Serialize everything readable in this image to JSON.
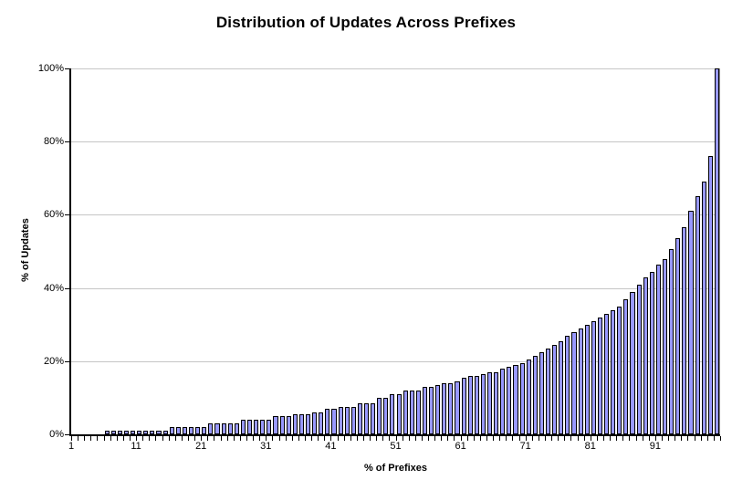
{
  "title": "Distribution of Updates Across Prefixes",
  "chart_data": {
    "type": "bar",
    "title": "Distribution of Updates Across Prefixes",
    "xlabel": "% of Prefixes",
    "ylabel": "% of Updates",
    "ylim": [
      0,
      100
    ],
    "grid": "horizontal",
    "legend_position": "none",
    "bar_color": "#9999ff",
    "bar_border_color": "#000000",
    "gridline_color": "#c6c6c6",
    "yticks": [
      0,
      20,
      40,
      60,
      80,
      100
    ],
    "ytick_labels": [
      "0%",
      "20%",
      "40%",
      "60%",
      "80%",
      "100%"
    ],
    "xtick_labels": [
      "1",
      "11",
      "21",
      "31",
      "41",
      "51",
      "61",
      "71",
      "81",
      "91"
    ],
    "xtick_every": 10,
    "x": [
      1,
      2,
      3,
      4,
      5,
      6,
      7,
      8,
      9,
      10,
      11,
      12,
      13,
      14,
      15,
      16,
      17,
      18,
      19,
      20,
      21,
      22,
      23,
      24,
      25,
      26,
      27,
      28,
      29,
      30,
      31,
      32,
      33,
      34,
      35,
      36,
      37,
      38,
      39,
      40,
      41,
      42,
      43,
      44,
      45,
      46,
      47,
      48,
      49,
      50,
      51,
      52,
      53,
      54,
      55,
      56,
      57,
      58,
      59,
      60,
      61,
      62,
      63,
      64,
      65,
      66,
      67,
      68,
      69,
      70,
      71,
      72,
      73,
      74,
      75,
      76,
      77,
      78,
      79,
      80,
      81,
      82,
      83,
      84,
      85,
      86,
      87,
      88,
      89,
      90,
      91,
      92,
      93,
      94,
      95,
      96,
      97,
      98,
      99,
      100
    ],
    "values": [
      0,
      0,
      0,
      0,
      0,
      1,
      1,
      1,
      1,
      1,
      1,
      1,
      1,
      1,
      1,
      2,
      2,
      2,
      2,
      2,
      2,
      3,
      3,
      3,
      3,
      3,
      4,
      4,
      4,
      4,
      4,
      5,
      5,
      5,
      5.5,
      5.5,
      5.5,
      6,
      6,
      7,
      7,
      7.5,
      7.5,
      7.5,
      8.5,
      8.5,
      8.5,
      10,
      10,
      11,
      11,
      12,
      12,
      12,
      13,
      13,
      13.5,
      14,
      14,
      14.5,
      15.5,
      16,
      16,
      16.5,
      17,
      17,
      18,
      18.5,
      19,
      19.5,
      20.5,
      21.5,
      22.5,
      23.5,
      24.5,
      25.5,
      27,
      28,
      29,
      30,
      31,
      32,
      33,
      34,
      35,
      37,
      39,
      41,
      43,
      44.5,
      46.5,
      48,
      50.5,
      53.5,
      56.5,
      61,
      65,
      69,
      76,
      100
    ]
  }
}
